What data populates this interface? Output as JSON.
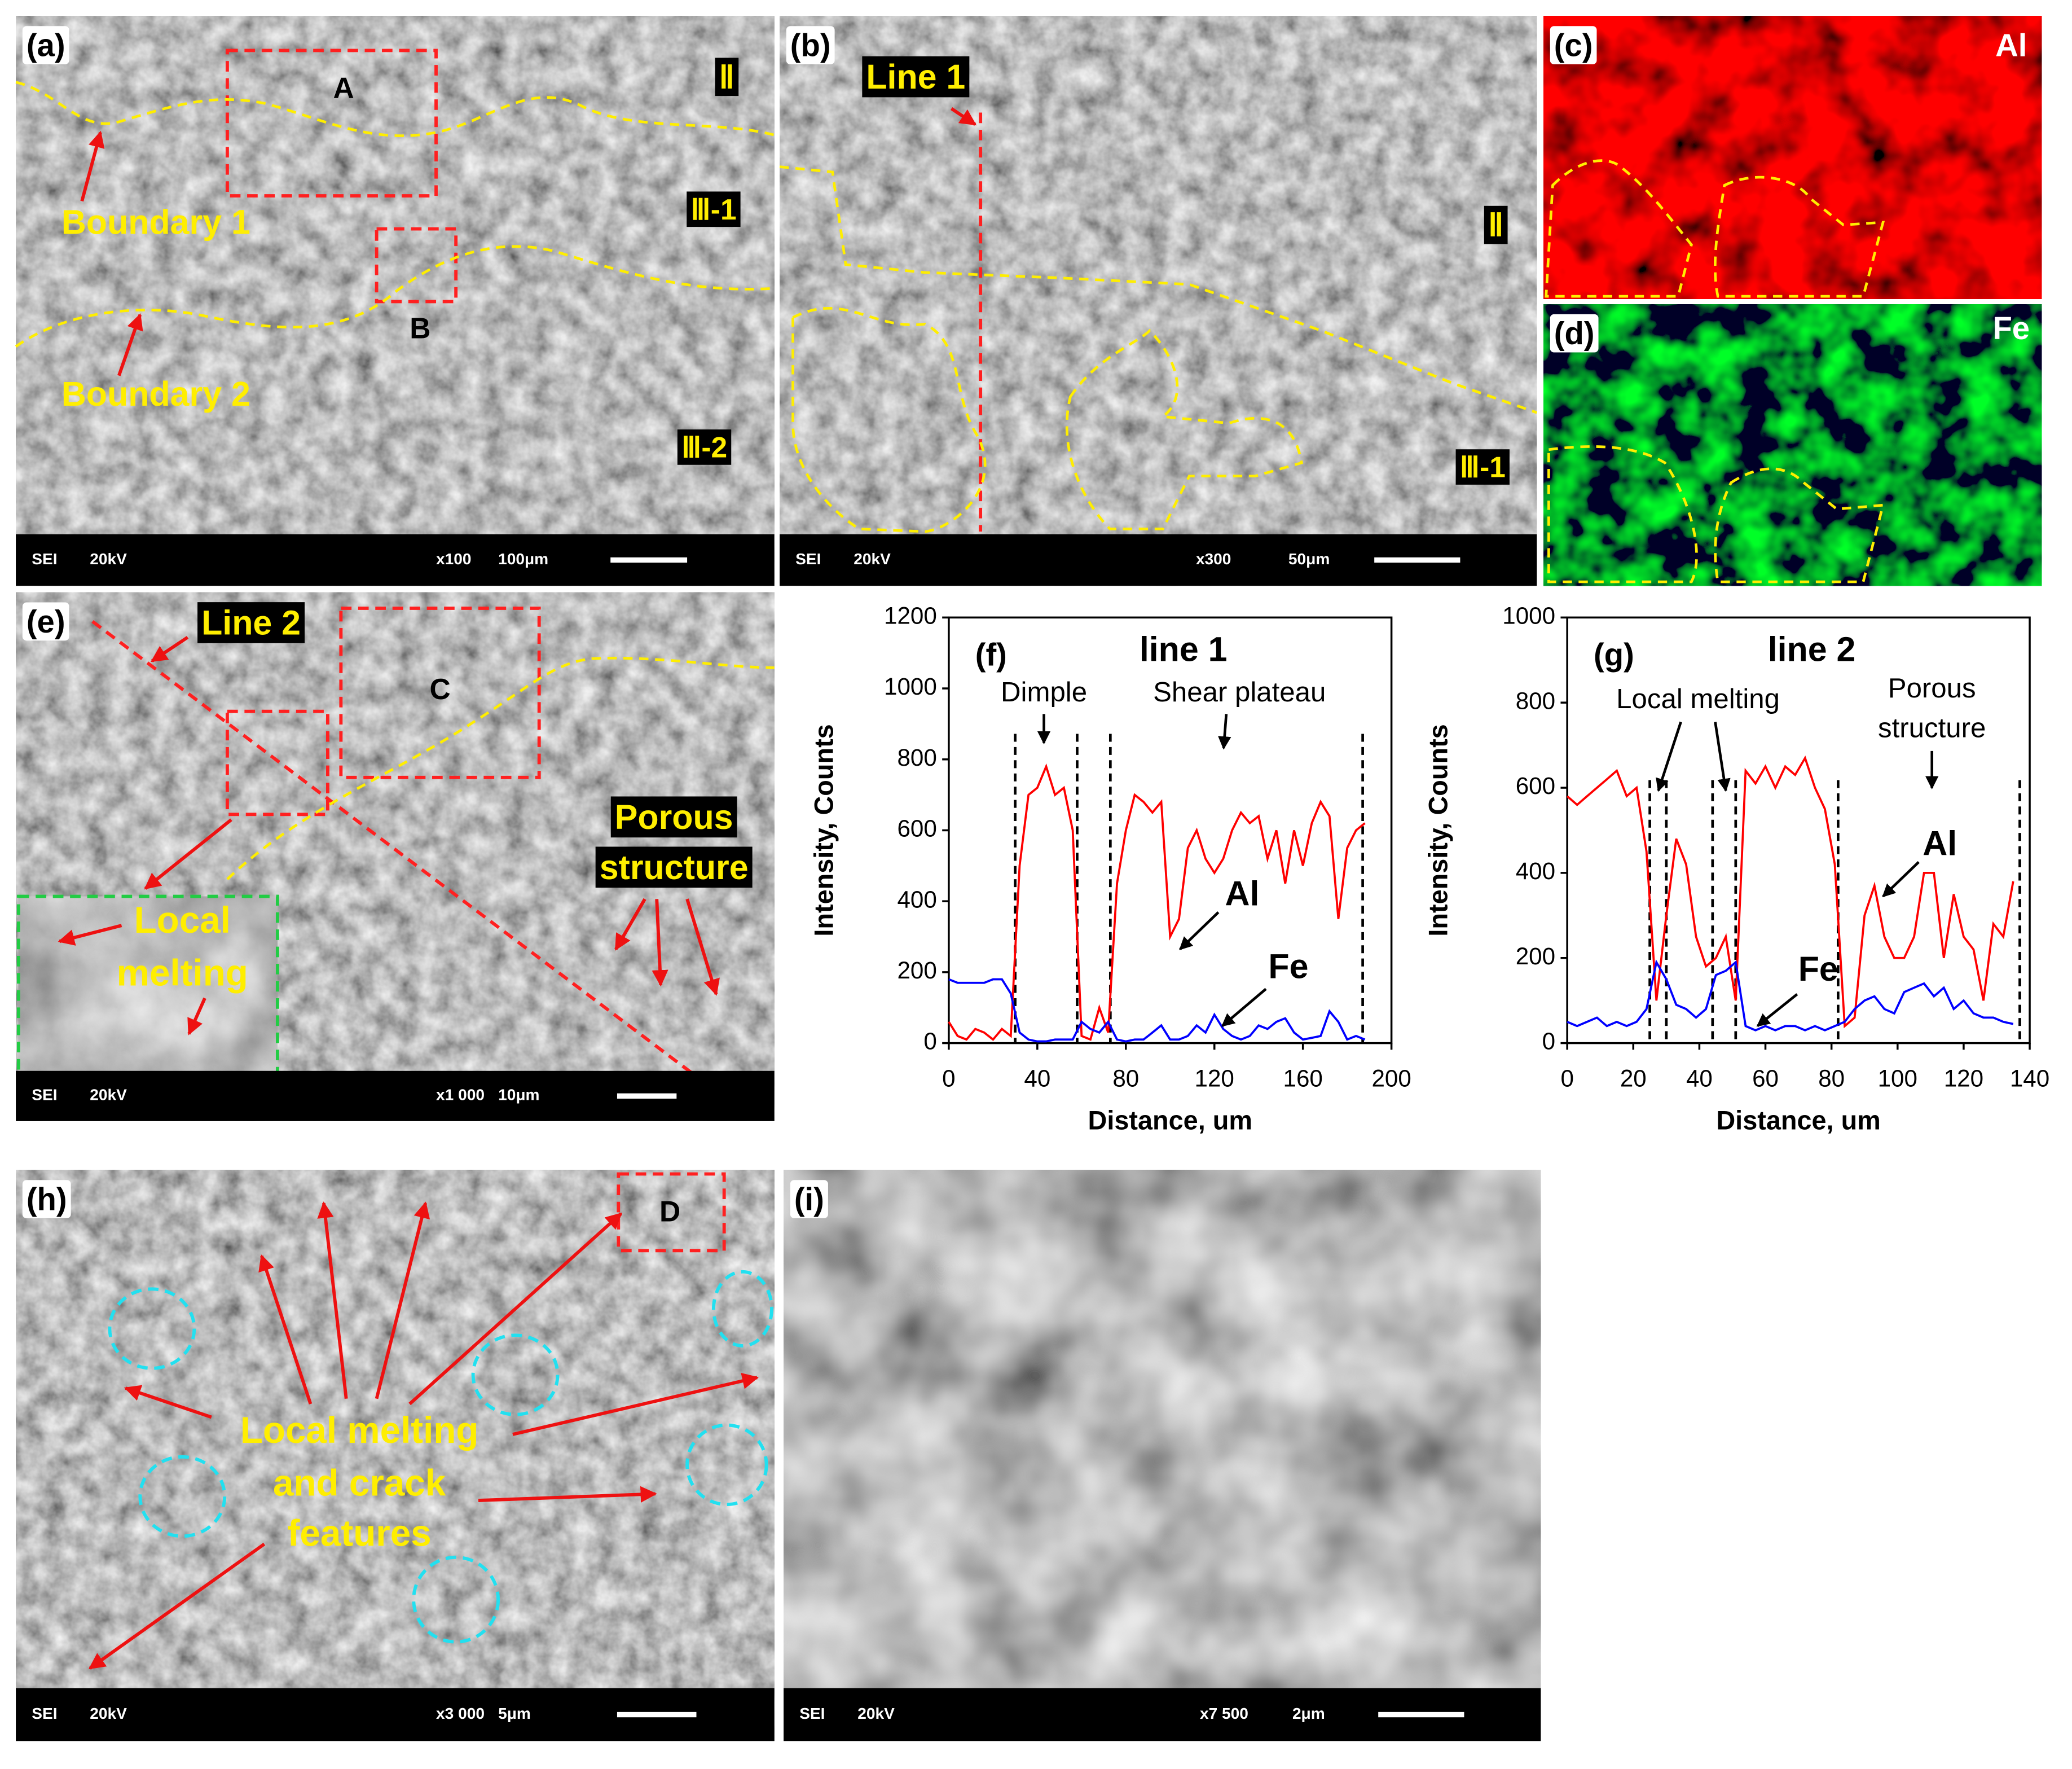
{
  "panels": [
    {
      "label": "(a)",
      "footer": [
        "SEI",
        "20kV",
        "x100",
        "100μm"
      ],
      "notes": [
        "A",
        "B",
        "Ⅱ",
        "Ⅲ-1",
        "Ⅲ-2",
        "Boundary 1",
        "Boundary 2"
      ]
    },
    {
      "label": "(b)",
      "footer": [
        "SEI",
        "20kV",
        "x300",
        "50μm"
      ],
      "notes": [
        "Line 1",
        "Ⅱ",
        "Ⅲ-1"
      ]
    },
    {
      "label": "(c)",
      "notes": [
        "Al"
      ]
    },
    {
      "label": "(d)",
      "notes": [
        "Fe"
      ]
    },
    {
      "label": "(e)",
      "footer": [
        "SEI",
        "20kV",
        "x1 000",
        "10μm"
      ],
      "notes": [
        "Line 2",
        "C",
        "Porous",
        "structure",
        "Local",
        "melting"
      ]
    },
    {
      "label": "(h)",
      "footer": [
        "SEI",
        "20kV",
        "x3 000",
        "5μm"
      ],
      "notes": [
        "D",
        "Local melting",
        "and crack",
        "features"
      ]
    },
    {
      "label": "(i)",
      "footer": [
        "SEI",
        "20kV",
        "x7 500",
        "2μm"
      ],
      "notes": []
    }
  ],
  "chart_data": [
    {
      "type": "line",
      "panel_label": "(f)",
      "title": "line 1",
      "x_label": "Distance, um",
      "y_label": "Intensity, Counts",
      "annotations": [
        "Dimple",
        "Shear plateau",
        "Al",
        "Fe"
      ],
      "xlim": [
        0,
        200
      ],
      "xticks": [
        0,
        40,
        80,
        120,
        160,
        200
      ],
      "ylim": [
        0,
        1200
      ],
      "yticks": [
        0,
        200,
        400,
        600,
        800,
        1000,
        1200
      ],
      "dashed_lines_x": [
        30,
        58,
        73,
        187
      ],
      "x": [
        0,
        4,
        8,
        12,
        16,
        20,
        24,
        28,
        32,
        36,
        40,
        44,
        48,
        52,
        56,
        60,
        64,
        68,
        72,
        76,
        80,
        84,
        88,
        92,
        96,
        100,
        104,
        108,
        112,
        116,
        120,
        124,
        128,
        132,
        136,
        140,
        144,
        148,
        152,
        156,
        160,
        164,
        168,
        172,
        176,
        180,
        184,
        188
      ],
      "series": [
        {
          "name": "Al",
          "color": "#ff0000",
          "values": [
            60,
            20,
            10,
            40,
            30,
            10,
            40,
            20,
            500,
            700,
            720,
            780,
            700,
            720,
            600,
            20,
            10,
            100,
            30,
            450,
            600,
            700,
            680,
            650,
            680,
            300,
            350,
            550,
            600,
            520,
            480,
            520,
            600,
            650,
            620,
            640,
            520,
            600,
            450,
            600,
            500,
            620,
            680,
            640,
            350,
            550,
            600,
            620
          ]
        },
        {
          "name": "Fe",
          "color": "#0000ff",
          "values": [
            180,
            170,
            170,
            170,
            170,
            180,
            180,
            140,
            30,
            10,
            5,
            5,
            10,
            10,
            10,
            60,
            40,
            30,
            60,
            10,
            5,
            10,
            10,
            30,
            50,
            10,
            10,
            20,
            50,
            30,
            80,
            40,
            20,
            10,
            20,
            50,
            40,
            60,
            70,
            30,
            10,
            15,
            20,
            90,
            60,
            10,
            20,
            10
          ]
        }
      ]
    },
    {
      "type": "line",
      "panel_label": "(g)",
      "title": "line 2",
      "x_label": "Distance, um",
      "y_label": "Intensity, Counts",
      "annotations": [
        "Local melting",
        "Porous",
        "structure",
        "Al",
        "Fe"
      ],
      "xlim": [
        0,
        140
      ],
      "xticks": [
        0,
        20,
        40,
        60,
        80,
        100,
        120,
        140
      ],
      "ylim": [
        0,
        1000
      ],
      "yticks": [
        0,
        200,
        400,
        600,
        800,
        1000
      ],
      "dashed_lines_x": [
        25,
        30,
        44,
        51,
        82,
        137
      ],
      "x": [
        0,
        3,
        6,
        9,
        12,
        15,
        18,
        21,
        24,
        27,
        30,
        33,
        36,
        39,
        42,
        45,
        48,
        51,
        54,
        57,
        60,
        63,
        66,
        69,
        72,
        75,
        78,
        81,
        84,
        87,
        90,
        93,
        96,
        99,
        102,
        105,
        108,
        111,
        114,
        117,
        120,
        123,
        126,
        129,
        132,
        135
      ],
      "series": [
        {
          "name": "Al",
          "color": "#ff0000",
          "values": [
            580,
            560,
            580,
            600,
            620,
            640,
            580,
            600,
            450,
            100,
            300,
            480,
            420,
            250,
            180,
            200,
            250,
            100,
            640,
            610,
            650,
            600,
            650,
            630,
            670,
            600,
            550,
            420,
            40,
            60,
            300,
            370,
            250,
            200,
            200,
            250,
            400,
            400,
            200,
            350,
            250,
            220,
            100,
            280,
            250,
            380
          ]
        },
        {
          "name": "Fe",
          "color": "#0000ff",
          "values": [
            50,
            40,
            50,
            60,
            40,
            50,
            40,
            50,
            80,
            190,
            150,
            90,
            80,
            60,
            80,
            160,
            170,
            190,
            40,
            30,
            40,
            30,
            40,
            40,
            30,
            40,
            30,
            40,
            50,
            80,
            100,
            110,
            80,
            70,
            120,
            130,
            140,
            110,
            130,
            80,
            100,
            70,
            60,
            60,
            50,
            45
          ]
        }
      ]
    }
  ]
}
